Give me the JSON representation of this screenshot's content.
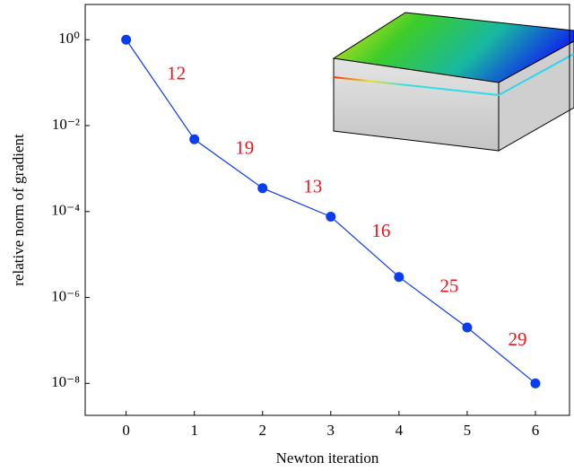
{
  "chart_data": {
    "type": "line",
    "x_label": "Newton iteration",
    "y_label": "relative norm of gradient",
    "x": [
      0,
      1,
      2,
      3,
      4,
      5,
      6
    ],
    "series": [
      {
        "color": "#0a3cf0",
        "values": [
          1,
          0.0048,
          0.00035,
          7.6e-05,
          3e-06,
          2e-07,
          1e-08
        ]
      }
    ],
    "annotations": [
      12,
      19,
      13,
      16,
      25,
      29
    ],
    "annotation_color": "#e8141c",
    "xlim": [
      -0.6,
      6.5
    ],
    "xticks": [
      0,
      1,
      2,
      3,
      4,
      5,
      6
    ],
    "ylim": [
      1.8e-09,
      6.6
    ],
    "log_y": true,
    "yticks": [
      {
        "value": 1,
        "label": "10⁰"
      },
      {
        "value": 0.01,
        "label": "10⁻²"
      },
      {
        "value": 0.0001,
        "label": "10⁻⁴"
      },
      {
        "value": 1e-06,
        "label": "10⁻⁶"
      },
      {
        "value": 1e-08,
        "label": "10⁻⁸"
      }
    ]
  }
}
